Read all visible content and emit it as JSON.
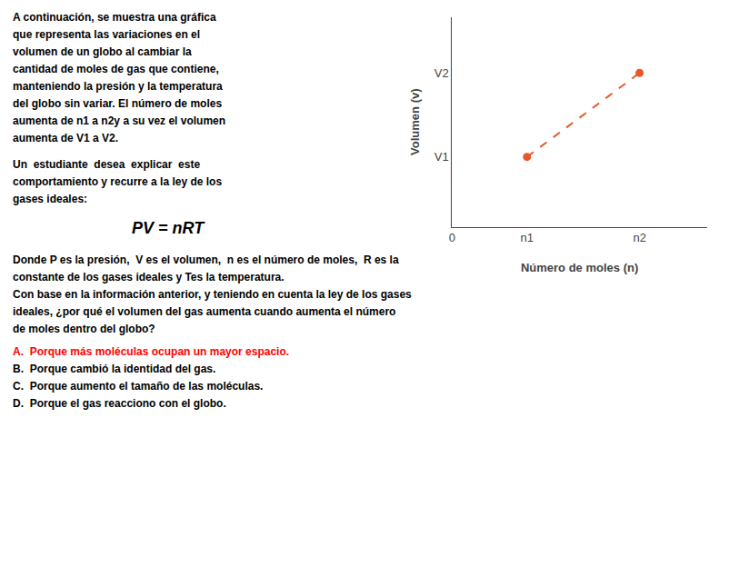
{
  "chart_data": {
    "type": "line",
    "xlabel": "Número de moles (n)",
    "ylabel": "Volumen (v)",
    "x": [
      1,
      2.5
    ],
    "values": [
      1,
      2.2
    ],
    "color": "#e8572a",
    "line_style": "dashed",
    "marker": "circle",
    "xlim": [
      0,
      3.4
    ],
    "ylim": [
      0,
      3.0
    ],
    "xticks": [
      0,
      {
        "value": 1,
        "label": "n1"
      },
      {
        "value": 2.5,
        "label": "n2"
      }
    ],
    "yticks": [
      {
        "value": 1,
        "label": "V1"
      },
      {
        "value": 2.2,
        "label": "V2"
      }
    ],
    "grid": false,
    "annotations": [
      {
        "lines": [
          "A continuación, se muestra una gráfica",
          "que representa las variaciones en el",
          "volumen de un globo al cambiar la",
          "cantidad de moles de gas que contiene,",
          "manteniendo la presión y la temperatura",
          "del globo sin variar. El número de moles",
          "aumenta de n1 a n2y a su vez el volumen",
          "aumenta de V1 a V2."
        ]
      },
      {
        "lines": [
          "Un  estudiante  desea  explicar  este",
          "comportamiento y recurre a la ley de los",
          "gases ideales:"
        ]
      }
    ],
    "formula": "PV = nRT",
    "question": [
      "Donde P es la presión,  V es el volumen,  n es el número de moles,  R es la",
      "constante de los gases ideales y Tes la temperatura.",
      "Con base en la información anterior, y teniendo en cuenta la ley de los gases",
      "ideales, ¿por qué el volumen del gas aumenta cuando aumenta el número",
      "de moles dentro del globo?"
    ],
    "answers": [
      {
        "text": "A.  Porque más moléculas ocupan un mayor espacio.",
        "color": "#ff0000"
      },
      {
        "text": "B.  Porque cambió la identidad del gas."
      },
      {
        "text": "C.  Porque aumento el tamaño de las moléculas."
      },
      {
        "text": "D.  Porque el gas reacciono con el globo."
      }
    ]
  }
}
